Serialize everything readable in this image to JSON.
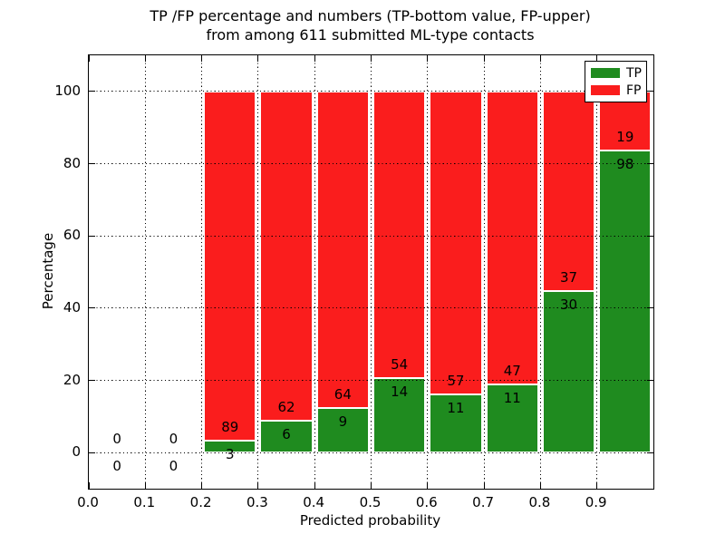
{
  "title": {
    "line1": "TP /FP percentage and numbers (TP-bottom value, FP-upper)",
    "line2": "from among 611 submitted ML-type contacts"
  },
  "chart_data": {
    "type": "bar",
    "stacked": true,
    "normalized": "each bin scaled to 100%",
    "title": "TP /FP percentage and numbers (TP-bottom value, FP-upper) from among 611 submitted ML-type contacts",
    "xlabel": "Predicted probability",
    "ylabel": "Percentage",
    "xlim": [
      0.0,
      1.0
    ],
    "ylim": [
      -10,
      110
    ],
    "x_tick_labels": [
      "0.0",
      "0.1",
      "0.2",
      "0.3",
      "0.4",
      "0.5",
      "0.6",
      "0.7",
      "0.8",
      "0.9"
    ],
    "y_tick_labels": [
      "0",
      "20",
      "40",
      "60",
      "80",
      "100"
    ],
    "grid": "dotted, drawn above bars",
    "legend_position": "upper right",
    "total_contacts": 611,
    "series": [
      {
        "name": "TP",
        "color": "#1f8b1f",
        "counts": [
          0,
          0,
          3,
          6,
          9,
          14,
          11,
          11,
          30,
          98
        ]
      },
      {
        "name": "FP",
        "color": "#fa1d1d",
        "counts": [
          0,
          0,
          89,
          62,
          64,
          54,
          57,
          47,
          37,
          19
        ]
      }
    ],
    "bins": [
      {
        "x0": 0.0,
        "x1": 0.1,
        "tp": 0,
        "fp": 0
      },
      {
        "x0": 0.1,
        "x1": 0.2,
        "tp": 0,
        "fp": 0
      },
      {
        "x0": 0.2,
        "x1": 0.3,
        "tp": 3,
        "fp": 89
      },
      {
        "x0": 0.3,
        "x1": 0.4,
        "tp": 6,
        "fp": 62
      },
      {
        "x0": 0.4,
        "x1": 0.5,
        "tp": 9,
        "fp": 64
      },
      {
        "x0": 0.5,
        "x1": 0.6,
        "tp": 14,
        "fp": 54
      },
      {
        "x0": 0.6,
        "x1": 0.7,
        "tp": 11,
        "fp": 57
      },
      {
        "x0": 0.7,
        "x1": 0.8,
        "tp": 11,
        "fp": 47
      },
      {
        "x0": 0.8,
        "x1": 0.9,
        "tp": 30,
        "fp": 37
      },
      {
        "x0": 0.9,
        "x1": 1.0,
        "tp": 98,
        "fp": 19
      }
    ],
    "tp_percent_derived": [
      0,
      0,
      3.3,
      8.8,
      12.3,
      20.6,
      16.2,
      19.0,
      44.8,
      83.8
    ]
  }
}
